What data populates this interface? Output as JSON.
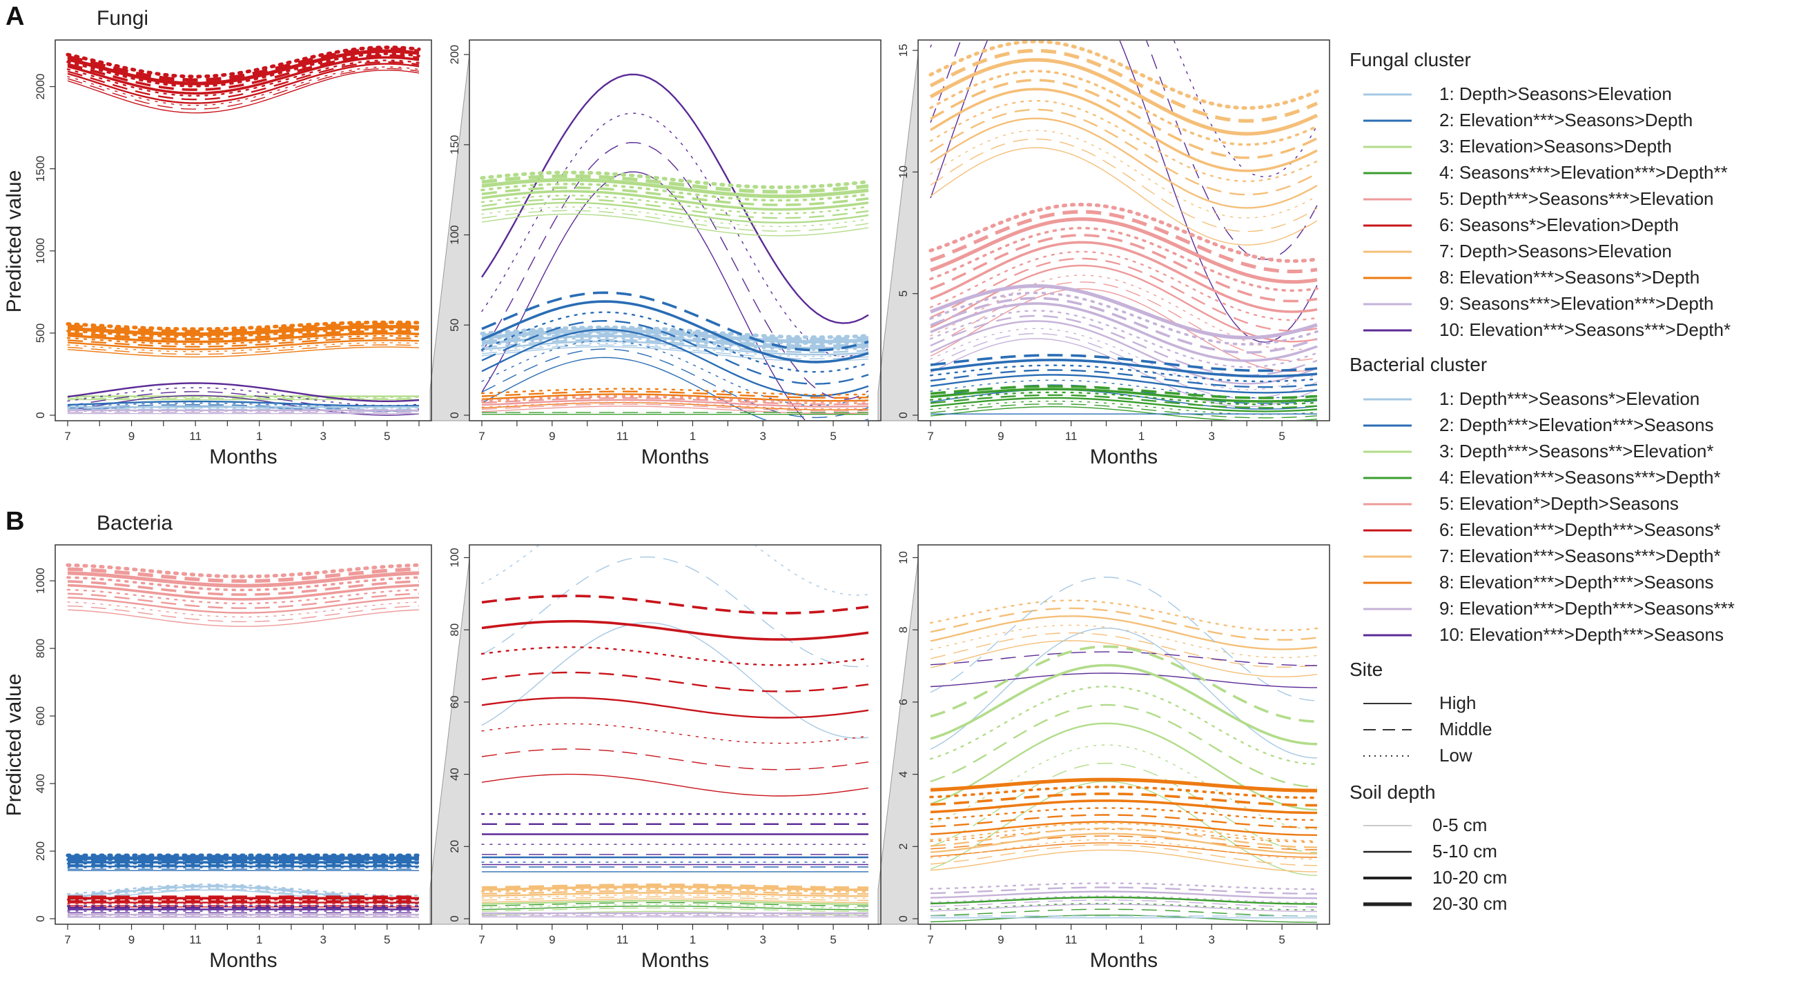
{
  "figure": {
    "panel_A_label": "A",
    "panel_A_title": "Fungi",
    "panel_B_label": "B",
    "panel_B_title": "Bacteria",
    "ylabel": "Predicted value",
    "xlabel": "Months"
  },
  "legend": {
    "fungal_title": "Fungal cluster",
    "fungal": [
      {
        "label": "1: Depth>Seasons>Elevation",
        "color": "#a6c8e3"
      },
      {
        "label": "2: Elevation***>Seasons>Depth",
        "color": "#2a6db5"
      },
      {
        "label": "3: Elevation>Seasons>Depth",
        "color": "#b2dc8a"
      },
      {
        "label": "4: Seasons***>Elevation***>Depth**",
        "color": "#3a9e2e"
      },
      {
        "label": "5: Depth***>Seasons***>Elevation",
        "color": "#ee9a9a"
      },
      {
        "label": "6: Seasons*>Elevation>Depth",
        "color": "#c8141b"
      },
      {
        "label": "7: Depth>Seasons>Elevation",
        "color": "#f5bf78"
      },
      {
        "label": "8: Elevation***>Seasons*>Depth",
        "color": "#ee7a12"
      },
      {
        "label": "9: Seasons***>Elevation***>Depth",
        "color": "#c6b2d9"
      },
      {
        "label": "10: Elevation***>Seasons***>Depth*",
        "color": "#5b2a96"
      }
    ],
    "bacterial_title": "Bacterial cluster",
    "bacterial": [
      {
        "label": "1: Depth***>Seasons*>Elevation",
        "color": "#a6c8e3"
      },
      {
        "label": "2: Depth***>Elevation***>Seasons",
        "color": "#2a6db5"
      },
      {
        "label": "3: Depth***>Seasons**>Elevation*",
        "color": "#b2dc8a"
      },
      {
        "label": "4: Elevation***>Seasons***>Depth*",
        "color": "#3a9e2e"
      },
      {
        "label": "5: Elevation*>Depth>Seasons",
        "color": "#ee9a9a"
      },
      {
        "label": "6: Elevation***>Depth***>Seasons*",
        "color": "#c8141b"
      },
      {
        "label": "7: Elevation***>Seasons***>Depth*",
        "color": "#f5bf78"
      },
      {
        "label": "8: Elevation***>Depth***>Seasons",
        "color": "#ee7a12"
      },
      {
        "label": "9: Elevation***>Depth***>Seasons***",
        "color": "#c6b2d9"
      },
      {
        "label": "10: Elevation***>Depth***>Seasons",
        "color": "#5b2a96"
      }
    ],
    "site_title": "Site",
    "site": [
      {
        "label": "High",
        "dash": "solid"
      },
      {
        "label": "Middle",
        "dash": "dashed"
      },
      {
        "label": "Low",
        "dash": "dotted"
      }
    ],
    "depth_title": "Soil depth",
    "depth": [
      {
        "label": "0-5 cm",
        "weight": 1
      },
      {
        "label": "5-10 cm",
        "weight": 2
      },
      {
        "label": "10-20 cm",
        "weight": 3
      },
      {
        "label": "20-30 cm",
        "weight": 4
      }
    ]
  },
  "chart_data": [
    {
      "id": "A1",
      "type": "line",
      "title": "Fungi",
      "xlabel": "Months",
      "ylabel": "Predicted value",
      "x_ticks": [
        "7",
        "9",
        "11",
        "1",
        "3",
        "5"
      ],
      "ylim": [
        0,
        2250
      ],
      "y_ticks": [
        0,
        500,
        1000,
        1500,
        2000
      ],
      "series": [
        {
          "cluster": 6,
          "color": "#c8141b",
          "base": 2060,
          "amp": -130,
          "peak": 11.0,
          "n": 12,
          "spread": 180
        },
        {
          "cluster": 8,
          "color": "#ee7a12",
          "base": 465,
          "amp": -30,
          "peak": 11.0,
          "n": 12,
          "spread": 160
        },
        {
          "cluster": 3,
          "color": "#b2dc8a",
          "base": 105,
          "amp": 0,
          "peak": 11,
          "n": 4,
          "spread": 20
        },
        {
          "cluster": 10,
          "color": "#5b2a96",
          "base": 100,
          "amp": 60,
          "peak": 11,
          "n": 4,
          "spread": 80
        },
        {
          "cluster": 2,
          "color": "#2a6db5",
          "base": 55,
          "amp": 15,
          "peak": 11,
          "n": 4,
          "spread": 30
        },
        {
          "cluster": 1,
          "color": "#a6c8e3",
          "base": 40,
          "amp": 0,
          "peak": 11,
          "n": 4,
          "spread": 20
        },
        {
          "cluster": 9,
          "color": "#c6b2d9",
          "base": 20,
          "amp": 0,
          "peak": 11,
          "n": 4,
          "spread": 20
        }
      ]
    },
    {
      "id": "A2",
      "type": "line",
      "xlabel": "Months",
      "x_ticks": [
        "7",
        "9",
        "11",
        "1",
        "3",
        "5"
      ],
      "ylim": [
        0,
        205
      ],
      "y_ticks": [
        0,
        50,
        100,
        150,
        200
      ],
      "series": [
        {
          "cluster": 10,
          "color": "#5b2a96",
          "base": 90,
          "amp": 75,
          "peak": 11.3,
          "n": 4,
          "spread": 60
        },
        {
          "cluster": 3,
          "color": "#b2dc8a",
          "base": 118,
          "amp": 6,
          "peak": 9.5,
          "n": 12,
          "spread": 25
        },
        {
          "cluster": 1,
          "color": "#a6c8e3",
          "base": 40,
          "amp": 4,
          "peak": 10.5,
          "n": 12,
          "spread": 12
        },
        {
          "cluster": 2,
          "color": "#2a6db5",
          "base": 32,
          "amp": 20,
          "peak": 10.5,
          "n": 8,
          "spread": 40
        },
        {
          "cluster": 8,
          "color": "#ee7a12",
          "base": 9,
          "amp": 2,
          "peak": 11,
          "n": 6,
          "spread": 8
        },
        {
          "cluster": 5,
          "color": "#ee9a9a",
          "base": 6,
          "amp": 2,
          "peak": 11,
          "n": 6,
          "spread": 6
        },
        {
          "cluster": 4,
          "color": "#3a9e2e",
          "base": 1,
          "amp": 0,
          "peak": 11,
          "n": 2,
          "spread": 1
        }
      ]
    },
    {
      "id": "A3",
      "type": "line",
      "xlabel": "Months",
      "x_ticks": [
        "7",
        "9",
        "11",
        "1",
        "3",
        "5"
      ],
      "ylim": [
        0,
        15.2
      ],
      "y_ticks": [
        0,
        5,
        10,
        15
      ],
      "series": [
        {
          "cluster": 10,
          "color": "#5b2a96",
          "base": 14,
          "amp": 8,
          "peak": 10.5,
          "n": 3,
          "spread": 6
        },
        {
          "cluster": 7,
          "color": "#f5bf78",
          "base": 11.5,
          "amp": 2,
          "peak": 10.0,
          "n": 12,
          "spread": 5
        },
        {
          "cluster": 5,
          "color": "#ee9a9a",
          "base": 5.5,
          "amp": 1.7,
          "peak": 11.3,
          "n": 12,
          "spread": 4
        },
        {
          "cluster": 9,
          "color": "#c6b2d9",
          "base": 3.0,
          "amp": 1.4,
          "peak": 10.0,
          "n": 10,
          "spread": 2.5
        },
        {
          "cluster": 2,
          "color": "#2a6db5",
          "base": 1.4,
          "amp": 0.4,
          "peak": 10.5,
          "n": 8,
          "spread": 1.5
        },
        {
          "cluster": 4,
          "color": "#3a9e2e",
          "base": 0.5,
          "amp": 0.3,
          "peak": 10.5,
          "n": 8,
          "spread": 0.9
        },
        {
          "cluster": 2,
          "color": "#2a6db5",
          "base": 0.05,
          "amp": 0,
          "peak": 10,
          "n": 1,
          "spread": 0
        }
      ]
    },
    {
      "id": "B1",
      "type": "line",
      "title": "Bacteria",
      "xlabel": "Months",
      "ylabel": "Predicted value",
      "x_ticks": [
        "7",
        "9",
        "11",
        "1",
        "3",
        "5"
      ],
      "ylim": [
        0,
        1090
      ],
      "y_ticks": [
        0,
        200,
        400,
        600,
        800,
        1000
      ],
      "series": [
        {
          "cluster": 5,
          "color": "#ee9a9a",
          "base": 960,
          "amp": -25,
          "peak": 12.5,
          "n": 12,
          "spread": 140
        },
        {
          "cluster": 2,
          "color": "#2a6db5",
          "base": 165,
          "amp": 0,
          "peak": 12,
          "n": 12,
          "spread": 45
        },
        {
          "cluster": 1,
          "color": "#a6c8e3",
          "base": 75,
          "amp": 20,
          "peak": 11.5,
          "n": 6,
          "spread": 20
        },
        {
          "cluster": 6,
          "color": "#c8141b",
          "base": 50,
          "amp": 0,
          "peak": 12,
          "n": 8,
          "spread": 30
        },
        {
          "cluster": 10,
          "color": "#5b2a96",
          "base": 25,
          "amp": 0,
          "peak": 12,
          "n": 6,
          "spread": 25
        },
        {
          "cluster": 9,
          "color": "#c6b2d9",
          "base": 8,
          "amp": 0,
          "peak": 12,
          "n": 4,
          "spread": 8
        }
      ]
    },
    {
      "id": "B2",
      "type": "line",
      "xlabel": "Months",
      "x_ticks": [
        "7",
        "9",
        "11",
        "1",
        "3",
        "5"
      ],
      "ylim": [
        0,
        102
      ],
      "y_ticks": [
        0,
        20,
        40,
        60,
        80,
        100
      ],
      "series": [
        {
          "cluster": 1,
          "color": "#a6c8e3",
          "base": 85,
          "amp": 16,
          "peak": 11.7,
          "n": 3,
          "spread": 38
        },
        {
          "cluster": 6,
          "color": "#c8141b",
          "base": 62,
          "amp": 3,
          "peak": 9.5,
          "n": 8,
          "spread": 50
        },
        {
          "cluster": 10,
          "color": "#5b2a96",
          "base": 22,
          "amp": 0,
          "peak": 12,
          "n": 6,
          "spread": 14
        },
        {
          "cluster": 2,
          "color": "#2a6db5",
          "base": 15,
          "amp": 0,
          "peak": 12,
          "n": 4,
          "spread": 4
        },
        {
          "cluster": 7,
          "color": "#f5bf78",
          "base": 7,
          "amp": 0.5,
          "peak": 12,
          "n": 8,
          "spread": 4
        },
        {
          "cluster": 3,
          "color": "#b2dc8a",
          "base": 3,
          "amp": 0.5,
          "peak": 12,
          "n": 4,
          "spread": 3
        },
        {
          "cluster": 4,
          "color": "#3a9e2e",
          "base": 3.5,
          "amp": 0.5,
          "peak": 12,
          "n": 2,
          "spread": 1
        },
        {
          "cluster": 9,
          "color": "#c6b2d9",
          "base": 1,
          "amp": 0,
          "peak": 12,
          "n": 4,
          "spread": 1
        }
      ]
    },
    {
      "id": "B3",
      "type": "line",
      "xlabel": "Months",
      "x_ticks": [
        "7",
        "9",
        "11",
        "1",
        "3",
        "5"
      ],
      "ylim": [
        0,
        10.2
      ],
      "y_ticks": [
        0,
        2,
        4,
        6,
        8,
        10
      ],
      "series": [
        {
          "cluster": 7,
          "color": "#f5bf78",
          "base": 7.8,
          "amp": 0.5,
          "peak": 11,
          "n": 6,
          "spread": 1.2
        },
        {
          "cluster": 1,
          "color": "#a6c8e3",
          "base": 7.0,
          "amp": 1.8,
          "peak": 12.0,
          "n": 2,
          "spread": 1.5
        },
        {
          "cluster": 10,
          "color": "#5b2a96",
          "base": 6.9,
          "amp": 0.2,
          "peak": 12,
          "n": 2,
          "spread": 0.6
        },
        {
          "cluster": 3,
          "color": "#b2dc8a",
          "base": 4.5,
          "amp": 1.3,
          "peak": 12.0,
          "n": 8,
          "spread": 4.0
        },
        {
          "cluster": 8,
          "color": "#ee7a12",
          "base": 2.8,
          "amp": 0.2,
          "peak": 12,
          "n": 10,
          "spread": 1.8
        },
        {
          "cluster": 7,
          "color": "#f5bf78",
          "base": 2.0,
          "amp": 0.3,
          "peak": 12,
          "n": 6,
          "spread": 0.8
        },
        {
          "cluster": 9,
          "color": "#c6b2d9",
          "base": 0.6,
          "amp": 0.1,
          "peak": 12,
          "n": 6,
          "spread": 0.6
        },
        {
          "cluster": 4,
          "color": "#3a9e2e",
          "base": 0.25,
          "amp": 0.1,
          "peak": 12,
          "n": 4,
          "spread": 0.5
        },
        {
          "cluster": 1,
          "color": "#a6c8e3",
          "base": 0.05,
          "amp": 0,
          "peak": 12,
          "n": 2,
          "spread": 0.05
        }
      ]
    }
  ]
}
